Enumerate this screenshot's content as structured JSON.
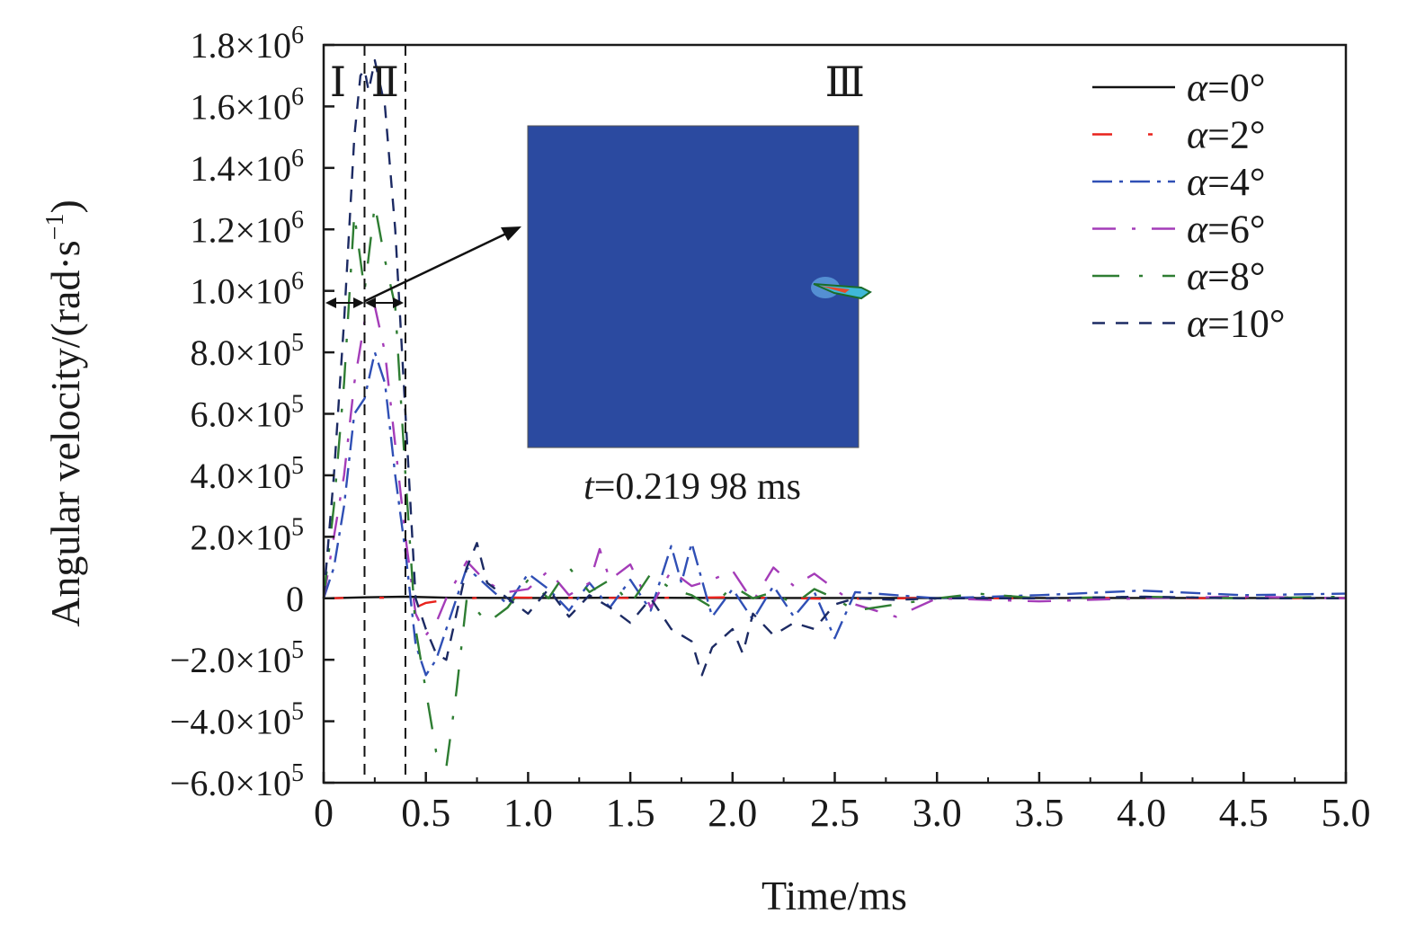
{
  "chart_data": {
    "type": "line",
    "xlabel": "Time/ms",
    "ylabel": "Angular velocity/(rad·s",
    "ylabel_sup": "−1",
    "ylabel_close": ")",
    "xlim": [
      0,
      5.0
    ],
    "ylim": [
      -600000,
      1800000
    ],
    "grid": false,
    "legend_position": "top-right",
    "x_ticks": [
      "0",
      "0.5",
      "1.0",
      "1.5",
      "2.0",
      "2.5",
      "3.0",
      "3.5",
      "4.0",
      "4.5",
      "5.0"
    ],
    "x_tick_values": [
      0,
      0.5,
      1.0,
      1.5,
      2.0,
      2.5,
      3.0,
      3.5,
      4.0,
      4.5,
      5.0
    ],
    "y_ticks": [
      {
        "value": 1800000,
        "mant": "1.8×10",
        "exp": "6"
      },
      {
        "value": 1600000,
        "mant": "1.6×10",
        "exp": "6"
      },
      {
        "value": 1400000,
        "mant": "1.4×10",
        "exp": "6"
      },
      {
        "value": 1200000,
        "mant": "1.2×10",
        "exp": "6"
      },
      {
        "value": 1000000,
        "mant": "1.0×10",
        "exp": "6"
      },
      {
        "value": 800000,
        "mant": "8.0×10",
        "exp": "5"
      },
      {
        "value": 600000,
        "mant": "6.0×10",
        "exp": "5"
      },
      {
        "value": 400000,
        "mant": "4.0×10",
        "exp": "5"
      },
      {
        "value": 200000,
        "mant": "2.0×10",
        "exp": "5"
      },
      {
        "value": 0,
        "mant": "0",
        "exp": ""
      },
      {
        "value": -200000,
        "mant": "−2.0×10",
        "exp": "5"
      },
      {
        "value": -400000,
        "mant": "−4.0×10",
        "exp": "5"
      },
      {
        "value": -600000,
        "mant": "−6.0×10",
        "exp": "5"
      }
    ],
    "stage_boundaries": [
      0.2,
      0.4
    ],
    "stage_labels": [
      {
        "text": "Ⅰ",
        "x": 0.07,
        "y": 1680000
      },
      {
        "text": "Ⅱ",
        "x": 0.3,
        "y": 1680000
      },
      {
        "text": "Ⅲ",
        "x": 2.55,
        "y": 1680000
      }
    ],
    "series": [
      {
        "name": "α=0°",
        "name_sym": "α",
        "name_val": "=0°",
        "color": "#111111",
        "dash": "",
        "x": [
          0,
          0.2,
          0.4,
          0.6,
          1.0,
          1.5,
          2.0,
          2.5,
          3.0,
          3.5,
          4.0,
          4.5,
          5.0
        ],
        "values": [
          0,
          3000,
          5000,
          2000,
          1000,
          2000,
          1000,
          1000,
          1000,
          1000,
          1000,
          1000,
          1000
        ]
      },
      {
        "name": "α=2°",
        "name_sym": "α",
        "name_val": "=2°",
        "color": "#e8221c",
        "dash": "22,40,5,40",
        "x": [
          0,
          0.1,
          0.2,
          0.3,
          0.35,
          0.4,
          0.45,
          0.5,
          0.6,
          0.8,
          1.0,
          1.5,
          2.0,
          2.5,
          3.0,
          3.5,
          4.0,
          4.5,
          5.0
        ],
        "values": [
          0,
          1000,
          2000,
          1500,
          0,
          -20000,
          -30000,
          -15000,
          -5000,
          3000,
          2000,
          1000,
          3000,
          -2000,
          1000,
          0,
          1000,
          0,
          1000
        ]
      },
      {
        "name": "α=4°",
        "name_sym": "α",
        "name_val": "=4°",
        "color": "#2f4fb5",
        "dash": "22,8,4,8",
        "x": [
          0,
          0.05,
          0.1,
          0.15,
          0.2,
          0.25,
          0.3,
          0.35,
          0.4,
          0.45,
          0.5,
          0.55,
          0.6,
          0.7,
          0.8,
          0.9,
          1.0,
          1.1,
          1.2,
          1.3,
          1.4,
          1.5,
          1.6,
          1.7,
          1.75,
          1.8,
          1.9,
          2.0,
          2.1,
          2.2,
          2.3,
          2.4,
          2.5,
          2.6,
          2.8,
          3.0,
          3.5,
          4.0,
          4.5,
          5.0
        ],
        "values": [
          0,
          100000,
          300000,
          600000,
          650000,
          800000,
          700000,
          400000,
          150000,
          -150000,
          -250000,
          -200000,
          -100000,
          100000,
          40000,
          -20000,
          80000,
          30000,
          -40000,
          50000,
          -30000,
          60000,
          -40000,
          170000,
          50000,
          180000,
          -60000,
          30000,
          -70000,
          40000,
          -60000,
          20000,
          -130000,
          20000,
          10000,
          0,
          10000,
          25000,
          10000,
          15000
        ]
      },
      {
        "name": "α=6°",
        "name_sym": "α",
        "name_val": "=6°",
        "color": "#a43cb8",
        "dash": "26,18,4,18",
        "x": [
          0,
          0.05,
          0.1,
          0.15,
          0.2,
          0.25,
          0.3,
          0.35,
          0.4,
          0.45,
          0.5,
          0.55,
          0.6,
          0.7,
          0.8,
          0.9,
          1.0,
          1.1,
          1.2,
          1.3,
          1.35,
          1.4,
          1.5,
          1.6,
          1.7,
          1.8,
          1.9,
          2.0,
          2.1,
          2.2,
          2.3,
          2.4,
          2.6,
          2.8,
          3.0,
          3.5,
          4.0,
          4.5,
          5.0
        ],
        "values": [
          0,
          200000,
          400000,
          700000,
          900000,
          950000,
          800000,
          500000,
          200000,
          -50000,
          -120000,
          -80000,
          0,
          120000,
          50000,
          20000,
          30000,
          90000,
          10000,
          50000,
          160000,
          60000,
          110000,
          -30000,
          90000,
          40000,
          60000,
          90000,
          -10000,
          100000,
          40000,
          80000,
          -20000,
          -60000,
          0,
          -10000,
          0,
          5000,
          0
        ]
      },
      {
        "name": "α=8°",
        "name_sym": "α",
        "name_val": "=8°",
        "color": "#2e7d32",
        "dash": "30,22,4,22",
        "x": [
          0,
          0.05,
          0.1,
          0.15,
          0.2,
          0.25,
          0.3,
          0.35,
          0.4,
          0.45,
          0.5,
          0.55,
          0.6,
          0.65,
          0.7,
          0.8,
          0.9,
          1.0,
          1.1,
          1.2,
          1.3,
          1.4,
          1.5,
          1.6,
          1.7,
          1.8,
          1.9,
          2.0,
          2.1,
          2.2,
          2.3,
          2.4,
          2.5,
          2.6,
          2.8,
          3.0,
          3.2,
          3.5,
          4.0,
          4.5,
          5.0
        ],
        "values": [
          0,
          300000,
          700000,
          1250000,
          1000000,
          1280000,
          1100000,
          950000,
          400000,
          -100000,
          -300000,
          -500000,
          -550000,
          -300000,
          0,
          -80000,
          -30000,
          60000,
          0,
          100000,
          20000,
          60000,
          -20000,
          80000,
          30000,
          10000,
          -30000,
          40000,
          0,
          20000,
          -20000,
          30000,
          0,
          -40000,
          -20000,
          0,
          15000,
          0,
          5000,
          0,
          5000
        ]
      },
      {
        "name": "α=10°",
        "name_sym": "α",
        "name_val": "=10°",
        "color": "#1c2a63",
        "dash": "14,12",
        "x": [
          0,
          0.05,
          0.1,
          0.15,
          0.18,
          0.2,
          0.22,
          0.25,
          0.3,
          0.35,
          0.4,
          0.45,
          0.5,
          0.55,
          0.6,
          0.7,
          0.75,
          0.8,
          0.9,
          1.0,
          1.1,
          1.2,
          1.3,
          1.4,
          1.5,
          1.6,
          1.7,
          1.8,
          1.85,
          1.9,
          2.0,
          2.05,
          2.1,
          2.2,
          2.3,
          2.4,
          2.5,
          2.6,
          2.8,
          3.0,
          3.5,
          4.0,
          4.5,
          5.0
        ],
        "values": [
          0,
          400000,
          900000,
          1500000,
          1700000,
          1720000,
          1650000,
          1750000,
          1600000,
          1200000,
          600000,
          0,
          -100000,
          -180000,
          -200000,
          100000,
          180000,
          50000,
          0,
          -50000,
          30000,
          -60000,
          10000,
          -30000,
          -80000,
          0,
          -100000,
          -140000,
          -250000,
          -160000,
          -100000,
          -180000,
          -50000,
          -120000,
          -80000,
          -100000,
          -20000,
          0,
          -5000,
          0,
          0,
          5000,
          0,
          0
        ]
      }
    ],
    "inset": {
      "caption_italic": "t",
      "caption_rest": "=0.219 98 ms",
      "color": "#2b4aa0"
    }
  }
}
